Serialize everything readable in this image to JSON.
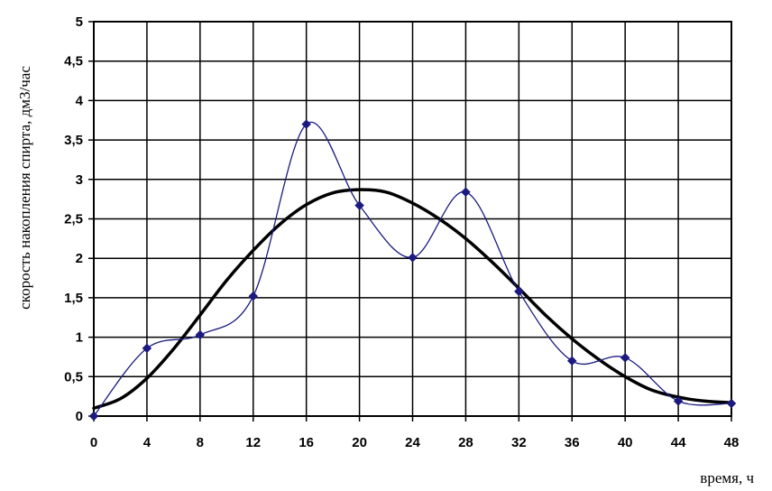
{
  "chart_data": {
    "type": "line",
    "title": "",
    "xlabel": "время, ч",
    "ylabel": "скорость накопления спирта, дм3/час",
    "xlim": [
      0,
      48
    ],
    "ylim": [
      0,
      5
    ],
    "x_ticks": [
      "0",
      "4",
      "8",
      "12",
      "16",
      "20",
      "24",
      "28",
      "32",
      "36",
      "40",
      "44",
      "48"
    ],
    "y_ticks": [
      "0",
      "0,5",
      "1",
      "1,5",
      "2",
      "2,5",
      "3",
      "3,5",
      "4",
      "4,5",
      "5"
    ],
    "grid": true,
    "legend": "none",
    "series": [
      {
        "style": "thin line with diamond markers",
        "color": "#1a1a80",
        "x": [
          0,
          4,
          8,
          12,
          16,
          20,
          24,
          28,
          32,
          36,
          40,
          44,
          48
        ],
        "y": [
          0,
          0.86,
          1.03,
          1.52,
          3.7,
          2.67,
          2.01,
          2.84,
          1.58,
          0.7,
          0.74,
          0.19,
          0.16
        ]
      },
      {
        "style": "thick smooth line",
        "color": "#000000",
        "x": [
          0,
          2,
          4,
          6,
          8,
          10,
          12,
          14,
          16,
          18,
          20,
          22,
          24,
          26,
          28,
          30,
          32,
          34,
          36,
          38,
          40,
          42,
          44,
          46,
          48
        ],
        "y": [
          0.1,
          0.22,
          0.48,
          0.85,
          1.28,
          1.72,
          2.1,
          2.43,
          2.68,
          2.83,
          2.87,
          2.84,
          2.7,
          2.5,
          2.25,
          1.95,
          1.62,
          1.28,
          0.98,
          0.72,
          0.5,
          0.33,
          0.24,
          0.19,
          0.17
        ]
      }
    ]
  }
}
